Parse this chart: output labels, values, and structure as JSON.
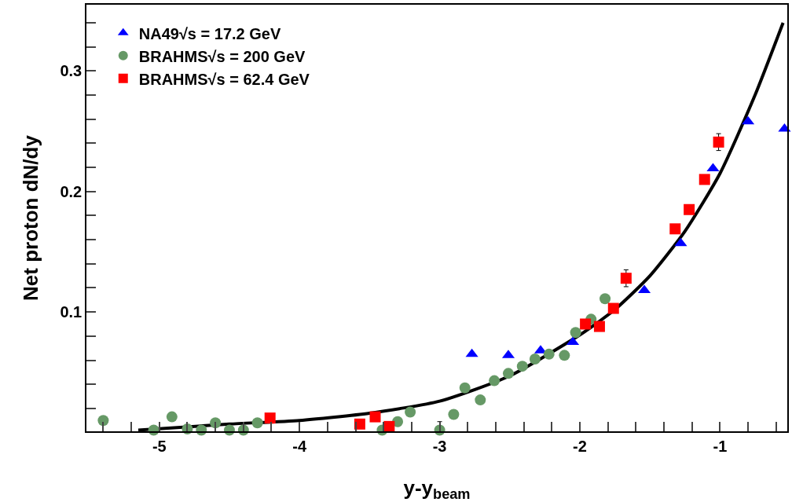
{
  "chart_data": {
    "type": "scatter",
    "xlabel": "y-y$_{beam}$",
    "ylabel": "Net proton dN/dy",
    "xlim": [
      -5.52,
      -0.52
    ],
    "ylim": [
      0.001,
      0.355
    ],
    "xticks": [
      {
        "value": -5.4,
        "label": null
      },
      {
        "value": -5.2,
        "label": null
      },
      -5,
      {
        "value": -4.8,
        "label": null
      },
      {
        "value": -4.6,
        "label": null
      },
      {
        "value": -4.4,
        "label": null
      },
      {
        "value": -4.2,
        "label": null
      },
      -4,
      {
        "value": -3.8,
        "label": null
      },
      {
        "value": -3.6,
        "label": null
      },
      {
        "value": -3.4,
        "label": null
      },
      {
        "value": -3.2,
        "label": null
      },
      -3,
      {
        "value": -2.8,
        "label": null
      },
      {
        "value": -2.6,
        "label": null
      },
      {
        "value": -2.4,
        "label": null
      },
      {
        "value": -2.2,
        "label": null
      },
      -2,
      {
        "value": -1.8,
        "label": null
      },
      {
        "value": -1.6,
        "label": null
      },
      {
        "value": -1.4,
        "label": null
      },
      {
        "value": -1.2,
        "label": null
      },
      -1,
      {
        "value": -0.8,
        "label": null
      },
      {
        "value": -0.6,
        "label": null
      }
    ],
    "yticks": [
      {
        "value": 0.02,
        "label": null
      },
      {
        "value": 0.04,
        "label": null
      },
      {
        "value": 0.06,
        "label": null
      },
      {
        "value": 0.08,
        "label": null
      },
      0.1,
      {
        "value": 0.12,
        "label": null
      },
      {
        "value": 0.14,
        "label": null
      },
      {
        "value": 0.16,
        "label": null
      },
      {
        "value": 0.18,
        "label": null
      },
      0.2,
      {
        "value": 0.22,
        "label": null
      },
      {
        "value": 0.24,
        "label": null
      },
      {
        "value": 0.26,
        "label": null
      },
      {
        "value": 0.28,
        "label": null
      },
      0.3,
      {
        "value": 0.32,
        "label": null
      },
      {
        "value": 0.34,
        "label": null
      }
    ],
    "grid": false,
    "legend": "top left",
    "series": [
      {
        "name": "NA49√s = 17.2 GeV",
        "color": "#0000ff",
        "marker": "triangle",
        "x": [
          -2.77,
          -2.51,
          -2.28,
          -2.05,
          -1.54,
          -1.28,
          -1.05,
          -0.8,
          -0.54
        ],
        "values": [
          0.065,
          0.064,
          0.068,
          0.075,
          0.118,
          0.157,
          0.219,
          0.258,
          0.252
        ]
      },
      {
        "name": "BRAHMS√s = 200 GeV",
        "color": "#669966",
        "marker": "circle",
        "x": [
          -5.4,
          -5.04,
          -4.91,
          -4.8,
          -4.7,
          -4.6,
          -4.5,
          -4.4,
          -4.3,
          -3.41,
          -3.3,
          -3.21,
          -3.0,
          -2.9,
          -2.82,
          -2.71,
          -2.61,
          -2.51,
          -2.41,
          -2.32,
          -2.22,
          -2.11,
          -2.03,
          -1.92,
          -1.82
        ],
        "values": [
          0.01,
          0.002,
          0.013,
          0.003,
          0.002,
          0.008,
          0.002,
          0.002,
          0.008,
          0.002,
          0.009,
          0.017,
          0.002,
          0.015,
          0.037,
          0.027,
          0.043,
          0.049,
          0.055,
          0.061,
          0.065,
          0.064,
          0.083,
          0.094,
          0.111
        ],
        "errors": [
          null,
          null,
          null,
          null,
          null,
          null,
          null,
          null,
          null,
          null,
          null,
          null,
          0.007,
          null,
          null,
          null,
          null,
          null,
          null,
          null,
          null,
          null,
          null,
          null,
          null
        ]
      },
      {
        "name": "BRAHMS√s = 62.4 GeV",
        "color": "#ff0000",
        "marker": "square",
        "x": [
          -4.21,
          -3.57,
          -3.46,
          -3.36,
          -1.96,
          -1.86,
          -1.76,
          -1.67,
          -1.32,
          -1.22,
          -1.11,
          -1.01
        ],
        "values": [
          0.012,
          0.007,
          0.013,
          0.005,
          0.09,
          0.088,
          0.103,
          0.128,
          0.169,
          0.185,
          0.21,
          0.241
        ],
        "errors": [
          null,
          null,
          null,
          null,
          null,
          null,
          null,
          0.007,
          null,
          null,
          null,
          0.007
        ]
      },
      {
        "type": "line",
        "color": "#000000",
        "marker": "none",
        "line_style": "solid",
        "x": [
          -5.15,
          -4.5,
          -4,
          -3.5,
          -3,
          -2.5,
          -2,
          -1.75,
          -1.5,
          -1.25,
          -1,
          -0.75,
          -0.55
        ],
        "values": [
          0.002,
          0.007,
          0.01,
          0.016,
          0.026,
          0.047,
          0.081,
          0.102,
          0.13,
          0.167,
          0.215,
          0.28,
          0.34
        ]
      }
    ]
  }
}
